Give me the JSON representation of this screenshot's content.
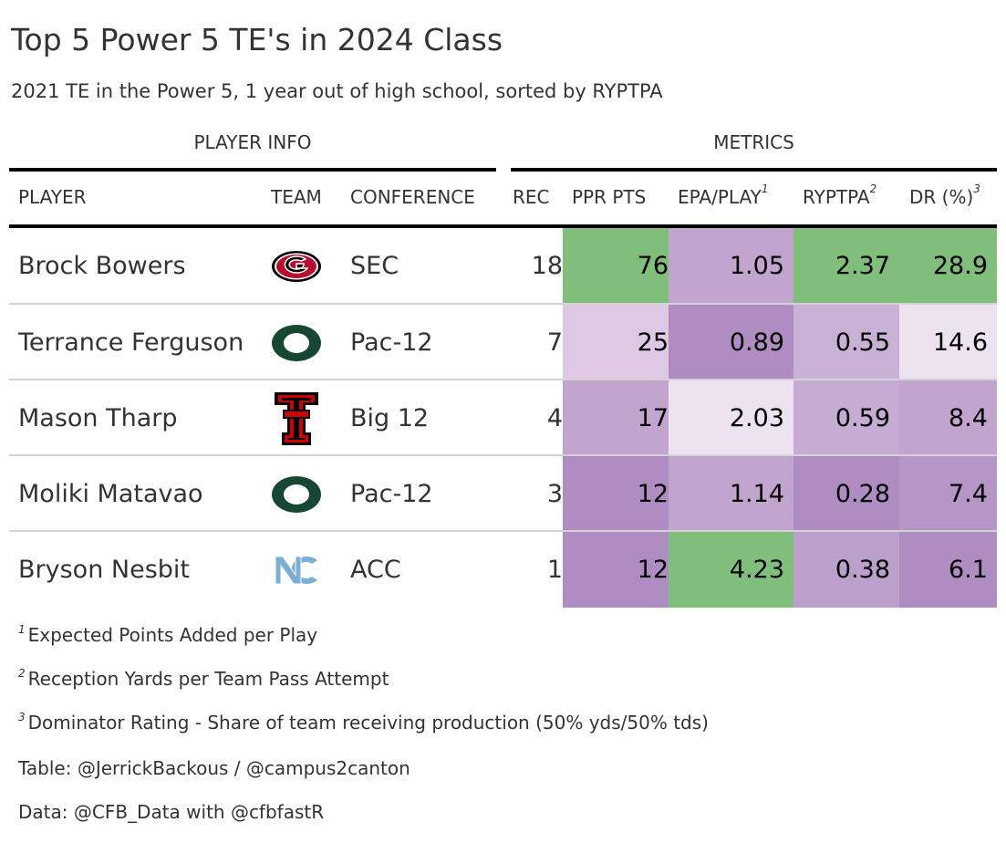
{
  "title": "Top 5 Power 5 TE's in 2024 Class",
  "subtitle": "2021 TE in the Power 5, 1 year out of high school, sorted by RYPTPA",
  "spanners": {
    "player_info": "PLAYER INFO",
    "metrics": "METRICS"
  },
  "columns": {
    "player": "PLAYER",
    "team": "TEAM",
    "conference": "CONFERENCE",
    "rec": "REC",
    "ppr": "PPR PTS",
    "epa": "EPA/PLAY",
    "epa_note": "1",
    "ryptpa": "RYPTPA",
    "ryptpa_note": "2",
    "dr": "DR (%)",
    "dr_note": "3"
  },
  "rows": [
    {
      "player": "Brock Bowers",
      "team_logo": "georgia-g-logo-icon",
      "conference": "SEC",
      "rec": "18",
      "ppr": "76",
      "epa": "1.05",
      "ryptpa": "2.37",
      "dr": "28.9",
      "colors": {
        "ppr": "#7fbf7b",
        "epa": "#c2a5cf",
        "ryptpa": "#7fbf7b",
        "dr": "#7fbf7b"
      }
    },
    {
      "player": "Terrance Ferguson",
      "team_logo": "oregon-o-logo-icon",
      "conference": "Pac-12",
      "rec": "7",
      "ppr": "25",
      "epa": "0.89",
      "ryptpa": "0.55",
      "dr": "14.6",
      "colors": {
        "ppr": "#dfc8e3",
        "epa": "#af8dc3",
        "ryptpa": "#c9b1d6",
        "dr": "#ede3f0"
      }
    },
    {
      "player": "Mason Tharp",
      "team_logo": "texas-tech-double-t-logo-icon",
      "conference": "Big 12",
      "rec": "4",
      "ppr": "17",
      "epa": "2.03",
      "ryptpa": "0.59",
      "dr": "8.4",
      "colors": {
        "ppr": "#c2a5cf",
        "epa": "#ede3f0",
        "ryptpa": "#c6abd3",
        "dr": "#c2a5cf"
      }
    },
    {
      "player": "Moliki Matavao",
      "team_logo": "oregon-o-logo-icon",
      "conference": "Pac-12",
      "rec": "3",
      "ppr": "12",
      "epa": "1.14",
      "ryptpa": "0.28",
      "dr": "7.4",
      "colors": {
        "ppr": "#af8dc3",
        "epa": "#c2a5cf",
        "ryptpa": "#af8dc3",
        "dr": "#b596c7"
      }
    },
    {
      "player": "Bryson Nesbit",
      "team_logo": "unc-nc-logo-icon",
      "conference": "ACC",
      "rec": "1",
      "ppr": "12",
      "epa": "4.23",
      "ryptpa": "0.38",
      "dr": "6.1",
      "colors": {
        "ppr": "#af8dc3",
        "epa": "#7fbf7b",
        "ryptpa": "#bba0cc",
        "dr": "#af8dc3"
      }
    }
  ],
  "footnotes": [
    {
      "mark": "1",
      "text": "Expected Points Added per Play"
    },
    {
      "mark": "2",
      "text": "Reception Yards per Team Pass Attempt"
    },
    {
      "mark": "3",
      "text": "Dominator Rating - Share of team receiving production (50% yds/50% tds)"
    }
  ],
  "source_notes": [
    "Table: @JerrickBackous / @campus2canton",
    "Data: @CFB_Data with @cfbfastR"
  ]
}
